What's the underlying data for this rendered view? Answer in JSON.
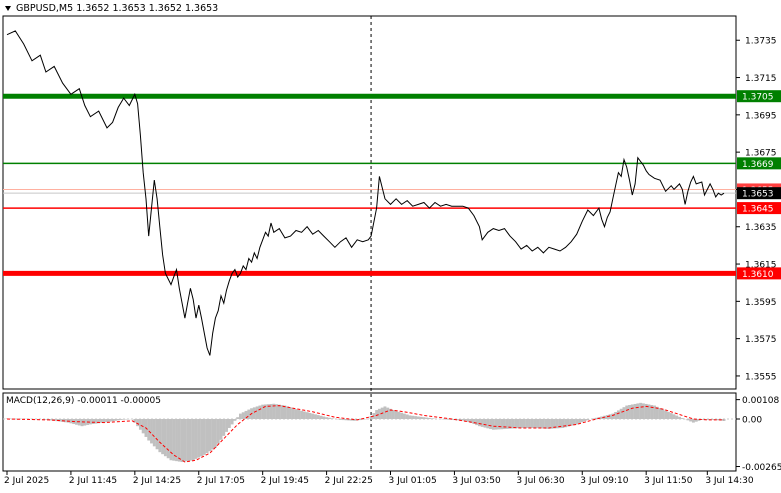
{
  "header": {
    "symbol_timeframe": "GBPUSD,M5",
    "quote": "1.3652 1.3653 1.3652 1.3653"
  },
  "macd": {
    "label": "MACD(12,26,9) -0.00011 -0.00005",
    "axis_labels": [
      "0.00108",
      "0.00",
      "-0.00265"
    ]
  },
  "colors": {
    "price_line": "#000000",
    "level_green": "#008000",
    "level_red": "#ff0000",
    "macd_histogram": "#c0c0c0",
    "macd_signal": "#ff0000",
    "grid": "#c8c8c8"
  },
  "chart_data": {
    "type": "line",
    "symbol": "GBPUSD",
    "timeframe": "M5",
    "y_ticks": [
      "1.3735",
      "1.3715",
      "1.3695",
      "1.3675",
      "1.3655",
      "1.3635",
      "1.3615",
      "1.3595",
      "1.3575",
      "1.3555"
    ],
    "ylim": [
      1.3548,
      1.3748
    ],
    "x_ticks": [
      "2 Jul 2025",
      "2 Jul 11:45",
      "2 Jul 14:25",
      "2 Jul 17:05",
      "2 Jul 19:45",
      "2 Jul 22:25",
      "3 Jul 01:05",
      "3 Jul 03:50",
      "3 Jul 06:30",
      "3 Jul 09:10",
      "3 Jul 11:50",
      "3 Jul 14:30"
    ],
    "price_labels": {
      "current": "1.3653",
      "ask": "1.3655"
    },
    "levels": [
      {
        "value": 1.3705,
        "label": "1.3705",
        "color": "green",
        "style": "thick"
      },
      {
        "value": 1.3669,
        "label": "1.3669",
        "color": "green",
        "style": "thin"
      },
      {
        "value": 1.3645,
        "label": "1.3645",
        "color": "red",
        "style": "thin"
      },
      {
        "value": 1.361,
        "label": "1.3610",
        "color": "red",
        "style": "thick"
      }
    ],
    "price_path": [
      [
        0,
        1.3738
      ],
      [
        3,
        1.374
      ],
      [
        6,
        1.3733
      ],
      [
        9,
        1.3724
      ],
      [
        12,
        1.3727
      ],
      [
        14,
        1.3718
      ],
      [
        17,
        1.3721
      ],
      [
        20,
        1.3712
      ],
      [
        23,
        1.3706
      ],
      [
        26,
        1.3709
      ],
      [
        28,
        1.37
      ],
      [
        30,
        1.3694
      ],
      [
        33,
        1.3697
      ],
      [
        36,
        1.3688
      ],
      [
        38,
        1.3691
      ],
      [
        40,
        1.3699
      ],
      [
        42,
        1.3704
      ],
      [
        44,
        1.37
      ],
      [
        46,
        1.3706
      ],
      [
        47,
        1.3701
      ],
      [
        48,
        1.3684
      ],
      [
        49,
        1.3664
      ],
      [
        50,
        1.365
      ],
      [
        51,
        1.363
      ],
      [
        52,
        1.3645
      ],
      [
        53,
        1.366
      ],
      [
        54,
        1.365
      ],
      [
        55,
        1.3635
      ],
      [
        56,
        1.362
      ],
      [
        57,
        1.361
      ],
      [
        58,
        1.3607
      ],
      [
        59,
        1.3604
      ],
      [
        60,
        1.3608
      ],
      [
        61,
        1.3612
      ],
      [
        62,
        1.3602
      ],
      [
        63,
        1.3594
      ],
      [
        64,
        1.3586
      ],
      [
        65,
        1.3594
      ],
      [
        66,
        1.3602
      ],
      [
        67,
        1.3596
      ],
      [
        68,
        1.3586
      ],
      [
        69,
        1.3593
      ],
      [
        70,
        1.3586
      ],
      [
        71,
        1.3578
      ],
      [
        72,
        1.357
      ],
      [
        73,
        1.3566
      ],
      [
        74,
        1.3578
      ],
      [
        75,
        1.3586
      ],
      [
        76,
        1.359
      ],
      [
        77,
        1.3598
      ],
      [
        78,
        1.3594
      ],
      [
        79,
        1.3601
      ],
      [
        80,
        1.3606
      ],
      [
        81,
        1.361
      ],
      [
        82,
        1.3612
      ],
      [
        83,
        1.3608
      ],
      [
        84,
        1.361
      ],
      [
        85,
        1.3614
      ],
      [
        86,
        1.3612
      ],
      [
        87,
        1.3618
      ],
      [
        88,
        1.3616
      ],
      [
        89,
        1.3621
      ],
      [
        90,
        1.3618
      ],
      [
        91,
        1.3624
      ],
      [
        92,
        1.3628
      ],
      [
        93,
        1.3632
      ],
      [
        94,
        1.363
      ],
      [
        95,
        1.3637
      ],
      [
        96,
        1.3632
      ],
      [
        98,
        1.3634
      ],
      [
        100,
        1.3629
      ],
      [
        102,
        1.363
      ],
      [
        104,
        1.3633
      ],
      [
        106,
        1.3632
      ],
      [
        108,
        1.3635
      ],
      [
        110,
        1.3631
      ],
      [
        112,
        1.3633
      ],
      [
        114,
        1.363
      ],
      [
        116,
        1.3627
      ],
      [
        118,
        1.3624
      ],
      [
        120,
        1.3627
      ],
      [
        122,
        1.3629
      ],
      [
        124,
        1.3624
      ],
      [
        126,
        1.3628
      ],
      [
        128,
        1.3627
      ],
      [
        130,
        1.3628
      ],
      [
        131,
        1.363
      ],
      [
        133,
        1.3645
      ],
      [
        134,
        1.3662
      ],
      [
        135,
        1.3656
      ],
      [
        136,
        1.365
      ],
      [
        138,
        1.3647
      ],
      [
        140,
        1.365
      ],
      [
        142,
        1.3647
      ],
      [
        144,
        1.3649
      ],
      [
        146,
        1.3646
      ],
      [
        148,
        1.3647
      ],
      [
        150,
        1.3648
      ],
      [
        152,
        1.3645
      ],
      [
        154,
        1.3648
      ],
      [
        156,
        1.3646
      ],
      [
        158,
        1.3647
      ],
      [
        160,
        1.3646
      ],
      [
        162,
        1.3646
      ],
      [
        164,
        1.3646
      ],
      [
        166,
        1.3645
      ],
      [
        168,
        1.3641
      ],
      [
        170,
        1.3635
      ],
      [
        171,
        1.3628
      ],
      [
        173,
        1.3632
      ],
      [
        175,
        1.3634
      ],
      [
        177,
        1.3633
      ],
      [
        179,
        1.3634
      ],
      [
        181,
        1.363
      ],
      [
        183,
        1.3627
      ],
      [
        185,
        1.3623
      ],
      [
        187,
        1.3625
      ],
      [
        189,
        1.3622
      ],
      [
        191,
        1.3624
      ],
      [
        193,
        1.3621
      ],
      [
        195,
        1.3624
      ],
      [
        197,
        1.3623
      ],
      [
        199,
        1.3622
      ],
      [
        201,
        1.3624
      ],
      [
        203,
        1.3627
      ],
      [
        205,
        1.3631
      ],
      [
        207,
        1.3638
      ],
      [
        209,
        1.3644
      ],
      [
        211,
        1.3641
      ],
      [
        213,
        1.3645
      ],
      [
        214,
        1.3639
      ],
      [
        215,
        1.3635
      ],
      [
        216,
        1.364
      ],
      [
        217,
        1.3643
      ],
      [
        218,
        1.365
      ],
      [
        219,
        1.3657
      ],
      [
        220,
        1.3664
      ],
      [
        221,
        1.3662
      ],
      [
        222,
        1.3671
      ],
      [
        223,
        1.3667
      ],
      [
        224,
        1.366
      ],
      [
        225,
        1.3652
      ],
      [
        226,
        1.3658
      ],
      [
        227,
        1.3672
      ],
      [
        228,
        1.367
      ],
      [
        229,
        1.3668
      ],
      [
        230,
        1.3665
      ],
      [
        231,
        1.3663
      ],
      [
        233,
        1.3661
      ],
      [
        235,
        1.366
      ],
      [
        237,
        1.3654
      ],
      [
        239,
        1.3657
      ],
      [
        240,
        1.3655
      ],
      [
        242,
        1.3658
      ],
      [
        243,
        1.3655
      ],
      [
        244,
        1.3647
      ],
      [
        245,
        1.3654
      ],
      [
        246,
        1.3659
      ],
      [
        247,
        1.3662
      ],
      [
        248,
        1.3658
      ],
      [
        250,
        1.3659
      ],
      [
        251,
        1.3652
      ],
      [
        252,
        1.3655
      ],
      [
        253,
        1.3658
      ],
      [
        254,
        1.3655
      ],
      [
        255,
        1.3651
      ],
      [
        256,
        1.3653
      ],
      [
        257,
        1.3652
      ],
      [
        258,
        1.3653
      ]
    ],
    "macd_series": {
      "histogram": [
        [
          0,
          3e-05
        ],
        [
          12,
          0.0
        ],
        [
          22,
          -0.0002
        ],
        [
          27,
          -0.0004
        ],
        [
          30,
          -0.0003
        ],
        [
          37,
          -0.00015
        ],
        [
          41,
          -5e-05
        ],
        [
          45,
          0.0
        ],
        [
          48,
          -0.0006
        ],
        [
          51,
          -0.0012
        ],
        [
          55,
          -0.00185
        ],
        [
          59,
          -0.0023
        ],
        [
          63,
          -0.0024
        ],
        [
          67,
          -0.0023
        ],
        [
          71,
          -0.002
        ],
        [
          75,
          -0.0016
        ],
        [
          80,
          -0.0005
        ],
        [
          84,
          0.0003
        ],
        [
          88,
          0.0006
        ],
        [
          92,
          0.0008
        ],
        [
          96,
          0.00085
        ],
        [
          100,
          0.00075
        ],
        [
          105,
          0.0005
        ],
        [
          110,
          0.0003
        ],
        [
          115,
          0.0001
        ],
        [
          120,
          -5e-05
        ],
        [
          125,
          -0.0001
        ],
        [
          130,
          0.0
        ],
        [
          133,
          0.0005
        ],
        [
          136,
          0.0007
        ],
        [
          139,
          0.0005
        ],
        [
          145,
          0.0002
        ],
        [
          155,
          0.0
        ],
        [
          165,
          -0.0001
        ],
        [
          170,
          -0.0004
        ],
        [
          175,
          -0.0006
        ],
        [
          180,
          -0.00055
        ],
        [
          185,
          -0.0005
        ],
        [
          190,
          -0.0005
        ],
        [
          195,
          -0.00055
        ],
        [
          200,
          -0.0005
        ],
        [
          205,
          -0.0003
        ],
        [
          210,
          0.0
        ],
        [
          213,
          0.0001
        ],
        [
          218,
          0.0003
        ],
        [
          223,
          0.00075
        ],
        [
          228,
          0.0009
        ],
        [
          233,
          0.00075
        ],
        [
          238,
          0.0004
        ],
        [
          243,
          5e-05
        ],
        [
          247,
          -0.0002
        ],
        [
          250,
          -5e-05
        ],
        [
          255,
          -5e-05
        ],
        [
          258,
          -0.00011
        ]
      ],
      "signal": [
        [
          0,
          0.0
        ],
        [
          15,
          -5e-05
        ],
        [
          25,
          -0.00015
        ],
        [
          35,
          -0.0002
        ],
        [
          45,
          -0.0001
        ],
        [
          50,
          -0.0005
        ],
        [
          55,
          -0.0013
        ],
        [
          60,
          -0.002
        ],
        [
          64,
          -0.0024
        ],
        [
          68,
          -0.0023
        ],
        [
          73,
          -0.0019
        ],
        [
          78,
          -0.0011
        ],
        [
          83,
          -0.0003
        ],
        [
          88,
          0.0003
        ],
        [
          93,
          0.0007
        ],
        [
          98,
          0.00075
        ],
        [
          103,
          0.0006
        ],
        [
          110,
          0.0004
        ],
        [
          118,
          0.0001
        ],
        [
          126,
          -5e-05
        ],
        [
          133,
          0.0002
        ],
        [
          138,
          0.0005
        ],
        [
          143,
          0.0004
        ],
        [
          150,
          0.0002
        ],
        [
          160,
          0.0
        ],
        [
          168,
          -0.0002
        ],
        [
          175,
          -0.0004
        ],
        [
          185,
          -0.0005
        ],
        [
          195,
          -0.0005
        ],
        [
          205,
          -0.0003
        ],
        [
          212,
          0.0
        ],
        [
          218,
          0.0002
        ],
        [
          225,
          0.0006
        ],
        [
          230,
          0.0007
        ],
        [
          236,
          0.00055
        ],
        [
          242,
          0.00025
        ],
        [
          247,
          0.0
        ],
        [
          252,
          -5e-05
        ],
        [
          258,
          -5e-05
        ]
      ],
      "ylim": [
        -0.0029,
        0.00145
      ]
    }
  }
}
